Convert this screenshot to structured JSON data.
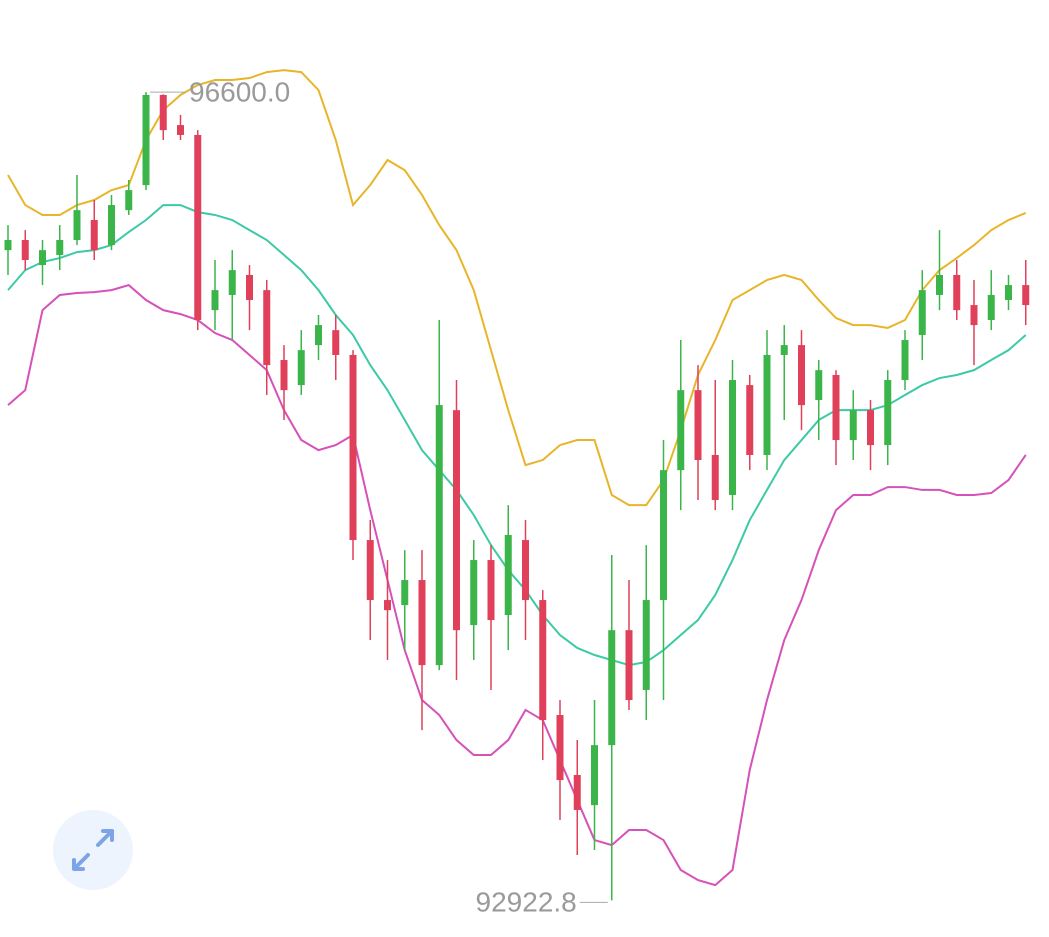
{
  "chart_data": {
    "type": "candlestick",
    "categories": [
      null,
      null,
      null,
      null,
      null,
      null,
      null,
      null,
      null,
      null,
      null,
      null,
      null,
      null,
      null,
      null,
      null,
      null,
      null,
      null,
      null,
      null,
      null,
      null,
      null,
      null,
      null,
      null,
      null,
      null,
      null,
      null,
      null,
      null,
      null,
      null,
      null,
      null,
      null,
      null,
      null,
      null,
      null,
      null,
      null,
      null,
      null,
      null,
      null,
      null,
      null,
      null,
      null,
      null,
      null,
      null,
      null,
      null,
      null,
      null
    ],
    "open": [
      95881,
      95927,
      95813,
      95859,
      95927,
      96018,
      95904,
      96063,
      96177,
      96587,
      96450,
      96405,
      95608,
      95677,
      95768,
      95699,
      95381,
      95267,
      95449,
      95517,
      95404,
      94562,
      94289,
      94266,
      94380,
      93993,
      95153,
      94175,
      94471,
      94221,
      94562,
      94289,
      93766,
      93493,
      93356,
      93629,
      94152,
      93880,
      94289,
      94880,
      95244,
      94949,
      94767,
      95267,
      94949,
      95404,
      95449,
      95199,
      95313,
      95017,
      95153,
      94994,
      95290,
      95495,
      95677,
      95768,
      95631,
      95563,
      95654,
      95722
    ],
    "close": [
      95927,
      95836,
      95881,
      95927,
      96063,
      95881,
      96086,
      96154,
      96587,
      96427,
      96405,
      95563,
      95699,
      95790,
      95654,
      95358,
      95244,
      95426,
      95540,
      95404,
      94562,
      94289,
      94243,
      94380,
      93993,
      95176,
      94152,
      94471,
      94198,
      94585,
      94289,
      93743,
      93470,
      93334,
      93629,
      94152,
      93834,
      94289,
      94880,
      95244,
      94926,
      94744,
      95290,
      94949,
      95404,
      95449,
      95176,
      95335,
      95017,
      95153,
      94994,
      95290,
      95472,
      95699,
      95768,
      95608,
      95540,
      95677,
      95722,
      95631
    ],
    "high": [
      95995,
      95972,
      95927,
      95995,
      96223,
      96109,
      96132,
      96200,
      96600,
      96590,
      96496,
      96427,
      95836,
      95881,
      95813,
      95745,
      95449,
      95517,
      95586,
      95586,
      95426,
      94653,
      94471,
      94516,
      94516,
      95563,
      95290,
      94562,
      94539,
      94721,
      94653,
      94334,
      93834,
      93652,
      93834,
      94494,
      94380,
      94539,
      95017,
      95472,
      95358,
      95290,
      95381,
      95313,
      95517,
      95540,
      95517,
      95381,
      95335,
      95244,
      95199,
      95335,
      95517,
      95790,
      95972,
      95836,
      95745,
      95790,
      95768,
      95836
    ],
    "low": [
      95768,
      95790,
      95722,
      95790,
      95904,
      95836,
      95881,
      96041,
      96154,
      96382,
      96382,
      95517,
      95517,
      95472,
      95517,
      95222,
      95108,
      95222,
      95381,
      95290,
      94471,
      94107,
      94016,
      94061,
      93697,
      93970,
      93925,
      94016,
      93880,
      94061,
      94107,
      93561,
      93288,
      93129,
      93152,
      92922.8,
      93789,
      93743,
      93834,
      94698,
      94744,
      94698,
      94698,
      94880,
      94880,
      95108,
      95062,
      95017,
      94903,
      94926,
      94880,
      94903,
      95244,
      95381,
      95608,
      95563,
      95358,
      95517,
      95608,
      95540
    ],
    "up_color": "#3bb54a",
    "down_color": "#e0405a",
    "overlays": [
      {
        "color": "#e8b52a",
        "values": [
          96223,
          96086,
          96041,
          96041,
          96086,
          96109,
          96154,
          96177,
          96382,
          96518,
          96587,
          96632,
          96655,
          96655,
          96664,
          96691,
          96700,
          96691,
          96609,
          96382,
          96086,
          96177,
          96291,
          96245,
          96132,
          95995,
          95881,
          95699,
          95426,
          95153,
          94903,
          94926,
          94994,
          95017,
          95017,
          94767,
          94721,
          94721,
          94835,
          95062,
          95313,
          95472,
          95654,
          95699,
          95745,
          95768,
          95745,
          95654,
          95572,
          95540,
          95540,
          95527,
          95563,
          95699,
          95790,
          95845,
          95904,
          95972,
          96018,
          96050
        ]
      },
      {
        "color": "#3ccaa6",
        "values": [
          95699,
          95790,
          95827,
          95845,
          95872,
          95881,
          95904,
          95963,
          96018,
          96086,
          96086,
          96054,
          96041,
          96018,
          95972,
          95927,
          95859,
          95790,
          95699,
          95586,
          95495,
          95358,
          95244,
          95108,
          94971,
          94880,
          94790,
          94676,
          94539,
          94425,
          94334,
          94221,
          94130,
          94071,
          94039,
          94016,
          93993,
          94007,
          94061,
          94130,
          94198,
          94312,
          94471,
          94653,
          94790,
          94926,
          95017,
          95108,
          95153,
          95153,
          95153,
          95176,
          95222,
          95267,
          95299,
          95313,
          95335,
          95381,
          95426,
          95495
        ]
      },
      {
        "color": "#d651b8",
        "values": [
          95176,
          95244,
          95608,
          95677,
          95686,
          95690,
          95699,
          95722,
          95654,
          95608,
          95590,
          95563,
          95504,
          95472,
          95404,
          95335,
          95153,
          95017,
          94971,
          94994,
          95040,
          94698,
          94380,
          94061,
          93834,
          93766,
          93652,
          93584,
          93584,
          93652,
          93789,
          93743,
          93561,
          93379,
          93197,
          93174,
          93243,
          93243,
          93197,
          93061,
          93015,
          92992,
          93061,
          93516,
          93834,
          94107,
          94289,
          94516,
          94698,
          94767,
          94767,
          94803,
          94803,
          94790,
          94790,
          94767,
          94767,
          94776,
          94835,
          94949
        ]
      }
    ],
    "max_label": {
      "value": 96600,
      "label": "96600.0"
    },
    "min_label": {
      "value": 92922.8,
      "label": "92922.8"
    },
    "ylim": [
      92756,
      97019
    ]
  }
}
